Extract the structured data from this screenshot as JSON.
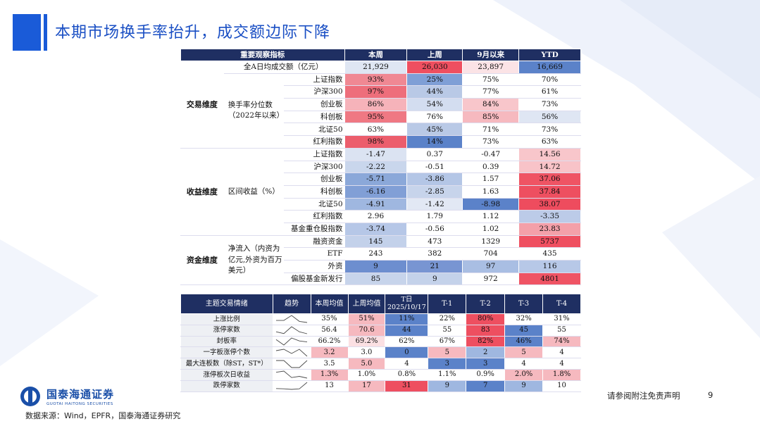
{
  "title": "本期市场换手率抬升，成交额边际下降",
  "colors": {
    "high": "#e85a6a",
    "mid_high": "#f3a7b0",
    "low": "#5b82c9",
    "mid_low": "#b9c9e6",
    "header": "#1f2f62"
  },
  "table1": {
    "headers": [
      "重要观察指标",
      "本周",
      "上周",
      "9月以来",
      "YTD"
    ],
    "dims": {
      "trade": "交易维度",
      "return": "收益维度",
      "fund": "资金维度"
    },
    "labels": {
      "turnover_pct": "换手率分位数（2022年以来）",
      "interval_return": "区间收益（%）",
      "net_inflow": "净流入（内资为亿元,外资为百万美元）"
    },
    "rows": [
      {
        "sub": "全A日均成交额（亿元）",
        "values": [
          "21,929",
          "26,030",
          "23,897",
          "16,669"
        ],
        "colors": [
          "#dfe6f3",
          "#ef4f60",
          "#fbe3e6",
          "#5b82c9"
        ]
      },
      {
        "sub": "上证指数",
        "values": [
          "93%",
          "25%",
          "75%",
          "70%"
        ],
        "colors": [
          "#f08893",
          "#7f9fd6",
          "#ffffff",
          "#ffffff"
        ]
      },
      {
        "sub": "沪深300",
        "values": [
          "97%",
          "44%",
          "77%",
          "61%"
        ],
        "colors": [
          "#ee6e7b",
          "#b9c9e6",
          "#ffffff",
          "#ffffff"
        ]
      },
      {
        "sub": "创业板",
        "values": [
          "86%",
          "54%",
          "84%",
          "73%"
        ],
        "colors": [
          "#f6b3ba",
          "#d3ddf0",
          "#f8c6cb",
          "#ffffff"
        ]
      },
      {
        "sub": "科创板",
        "values": [
          "95%",
          "76%",
          "85%",
          "56%"
        ],
        "colors": [
          "#ef7883",
          "#ffffff",
          "#f6b9bf",
          "#dfe6f3"
        ]
      },
      {
        "sub": "北证50",
        "values": [
          "63%",
          "45%",
          "71%",
          "73%"
        ],
        "colors": [
          "#ffffff",
          "#b9c9e6",
          "#ffffff",
          "#ffffff"
        ]
      },
      {
        "sub": "红利指数",
        "values": [
          "98%",
          "14%",
          "73%",
          "63%"
        ],
        "colors": [
          "#ec5d6c",
          "#5b82c9",
          "#ffffff",
          "#ffffff"
        ]
      },
      {
        "sub": "上证指数",
        "values": [
          "-1.47",
          "0.37",
          "-0.47",
          "14.56"
        ],
        "colors": [
          "#dbe3f2",
          "#ffffff",
          "#ffffff",
          "#f8c6cb"
        ]
      },
      {
        "sub": "沪深300",
        "values": [
          "-2.22",
          "-0.51",
          "0.39",
          "14.72"
        ],
        "colors": [
          "#c9d6ec",
          "#ffffff",
          "#ffffff",
          "#f8c3c8"
        ]
      },
      {
        "sub": "创业板",
        "values": [
          "-5.71",
          "-3.86",
          "1.57",
          "37.06"
        ],
        "colors": [
          "#8ba8d9",
          "#b4c6e6",
          "#ffffff",
          "#ef5464"
        ]
      },
      {
        "sub": "科创板",
        "values": [
          "-6.16",
          "-2.85",
          "1.63",
          "37.84"
        ],
        "colors": [
          "#819fd6",
          "#c7d4eb",
          "#ffffff",
          "#ee4f60"
        ]
      },
      {
        "sub": "北证50",
        "values": [
          "-4.91",
          "-1.42",
          "-8.98",
          "38.07"
        ],
        "colors": [
          "#9fb7e0",
          "#e2e8f4",
          "#5b82c9",
          "#ee4c5e"
        ]
      },
      {
        "sub": "红利指数",
        "values": [
          "2.96",
          "1.79",
          "1.12",
          "-3.35"
        ],
        "colors": [
          "#ffffff",
          "#ffffff",
          "#ffffff",
          "#bccbe8"
        ]
      },
      {
        "sub": "基金重仓股指数",
        "values": [
          "-3.74",
          "-0.56",
          "1.02",
          "23.83"
        ],
        "colors": [
          "#b6c7e7",
          "#ffffff",
          "#ffffff",
          "#f4a0a9"
        ]
      },
      {
        "sub": "融资资金",
        "values": [
          "145",
          "473",
          "1329",
          "5737"
        ],
        "colors": [
          "#c3d1ea",
          "#ffffff",
          "#ffffff",
          "#ef4f60"
        ]
      },
      {
        "sub": "ETF",
        "values": [
          "243",
          "382",
          "704",
          "435"
        ],
        "colors": [
          "#ffffff",
          "#ffffff",
          "#ffffff",
          "#ffffff"
        ]
      },
      {
        "sub": "外资",
        "values": [
          "9",
          "21",
          "97",
          "116"
        ],
        "colors": [
          "#6d8ecf",
          "#7895d2",
          "#a9bee3",
          "#b7c8e7"
        ]
      },
      {
        "sub": "偏股基金新发行",
        "values": [
          "85",
          "9",
          "972",
          "4801"
        ],
        "colors": [
          "#c7d4eb",
          "#c4d2ea",
          "#ffffff",
          "#ef5464"
        ]
      }
    ]
  },
  "table2": {
    "headers": [
      "主题交易情绪",
      "趋势",
      "本周均值",
      "上周均值",
      "T日\n2025/10/17",
      "T-1",
      "T-2",
      "T-3",
      "T-4"
    ],
    "rows": [
      {
        "name": "上涨比例",
        "values": [
          "35%",
          "51%",
          "11%",
          "22%",
          "80%",
          "32%",
          "31%"
        ],
        "colors": [
          "#ffffff",
          "#f6b9bf",
          "#5b82c9",
          "#ffffff",
          "#ee4f60",
          "#ffffff",
          "#ffffff"
        ]
      },
      {
        "name": "涨停家数",
        "values": [
          "56.4",
          "70.6",
          "44",
          "55",
          "83",
          "45",
          "55"
        ],
        "colors": [
          "#ffffff",
          "#f6b9bf",
          "#5b82c9",
          "#ffffff",
          "#ee4f60",
          "#5b82c9",
          "#ffffff"
        ]
      },
      {
        "name": "封板率",
        "values": [
          "66.2%",
          "69.2%",
          "62%",
          "67%",
          "82%",
          "46%",
          "74%"
        ],
        "colors": [
          "#ffffff",
          "#fbe0e3",
          "#ffffff",
          "#ffffff",
          "#ee4f60",
          "#5b82c9",
          "#f6b9bf"
        ]
      },
      {
        "name": "一字板涨停个数",
        "values": [
          "3.2",
          "3.0",
          "0",
          "5",
          "2",
          "5",
          "4"
        ],
        "colors": [
          "#f6b9bf",
          "#ffffff",
          "#5b82c9",
          "#f6b9bf",
          "#9fb7e0",
          "#f6b9bf",
          "#ffffff"
        ]
      },
      {
        "name": "最大连板数（除ST，ST*）",
        "values": [
          "3.5",
          "5.0",
          "4",
          "3",
          "3",
          "4",
          "4"
        ],
        "colors": [
          "#ffffff",
          "#f6b9bf",
          "#ffffff",
          "#5b82c9",
          "#5b82c9",
          "#ffffff",
          "#ffffff"
        ]
      },
      {
        "name": "涨停板次日收益",
        "values": [
          "1.3%",
          "1.0%",
          "0.8%",
          "1.1%",
          "0.9%",
          "2.0%",
          "1.8%"
        ],
        "colors": [
          "#f6b9bf",
          "#ffffff",
          "#ffffff",
          "#ffffff",
          "#ffffff",
          "#f6b9bf",
          "#f6b9bf"
        ]
      },
      {
        "name": "跌停家数",
        "values": [
          "13",
          "17",
          "31",
          "9",
          "7",
          "9",
          "10"
        ],
        "colors": [
          "#ffffff",
          "#f6b9bf",
          "#ee4f60",
          "#9fb7e0",
          "#5b82c9",
          "#9fb7e0",
          "#ffffff"
        ]
      }
    ]
  },
  "footer": {
    "logo_cn": "国泰海通证券",
    "logo_en": "GUOTAI HAITONG SECURITIES",
    "source": "数据来源：Wind，EPFR，国泰海通证券研究",
    "disclaimer": "请参阅附注免责声明",
    "page": "9"
  }
}
